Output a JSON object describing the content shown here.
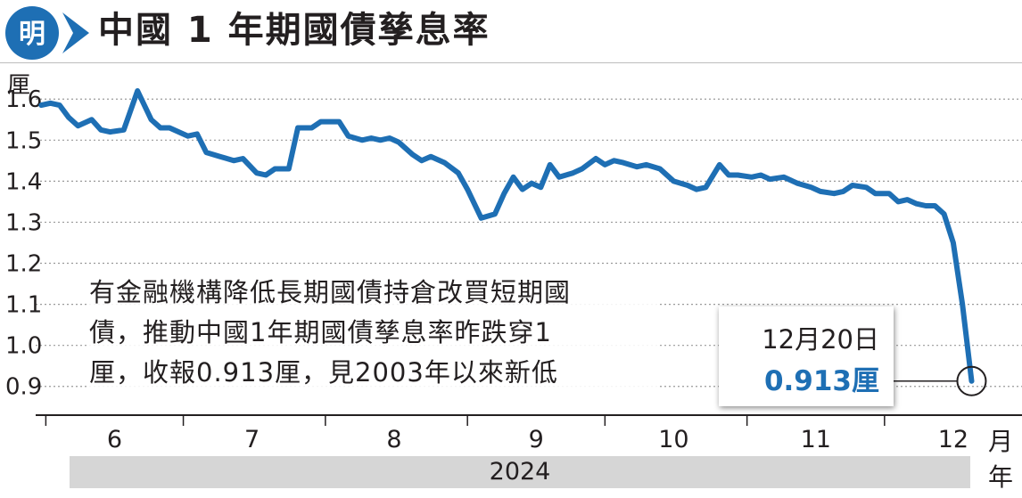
{
  "header": {
    "logo_text": "明",
    "title": "中國 1 年期國債孳息率"
  },
  "note": {
    "lines": [
      "有金融機構降低長期國債持倉改買短期國",
      "債，推動中國1年期國債孳息率昨跌穿1",
      "厘，收報0.913厘，見2003年以來新低"
    ]
  },
  "callout": {
    "date": "12月20日",
    "value": "0.913厘"
  },
  "colors": {
    "line": "#1e6fb4",
    "grid": "#9a9a9a",
    "axis": "#231f20",
    "year_bar": "#d6d6d6",
    "logo_blue": "#1e6fb4"
  },
  "chart_data": {
    "type": "line",
    "title": "中國 1 年期國債孳息率",
    "ylabel": "厘",
    "xlabel": "月",
    "year_label": "2024",
    "year_unit": "年",
    "ylim": [
      0.83,
      1.62
    ],
    "y_ticks": [
      {
        "value": 1.6,
        "label": "1.6"
      },
      {
        "value": 1.5,
        "label": "1.5"
      },
      {
        "value": 1.4,
        "label": "1.4"
      },
      {
        "value": 1.3,
        "label": "1.3"
      },
      {
        "value": 1.2,
        "label": "1.2"
      },
      {
        "value": 1.1,
        "label": "1.1"
      },
      {
        "value": 1.0,
        "label": "1.0"
      },
      {
        "value": 0.9,
        "label": "0.9"
      }
    ],
    "grid": true,
    "xlim": [
      "2024-05-22",
      "2024-12-31"
    ],
    "x_ticks": [
      "2024-06-01",
      "2024-07-01",
      "2024-08-01",
      "2024-09-01",
      "2024-10-01",
      "2024-11-01",
      "2024-12-01"
    ],
    "x_labels": [
      {
        "date": "2024-06-16",
        "label": "6"
      },
      {
        "date": "2024-07-16",
        "label": "7"
      },
      {
        "date": "2024-08-16",
        "label": "8"
      },
      {
        "date": "2024-09-16",
        "label": "9"
      },
      {
        "date": "2024-10-16",
        "label": "10"
      },
      {
        "date": "2024-11-16",
        "label": "11"
      },
      {
        "date": "2024-12-16",
        "label": "12"
      }
    ],
    "highlight": {
      "date": "2024-12-20",
      "value": 0.913
    },
    "series": [
      {
        "x": [
          "2024-05-31",
          "2024-06-02",
          "2024-06-04",
          "2024-06-06",
          "2024-06-08",
          "2024-06-11",
          "2024-06-13",
          "2024-06-15",
          "2024-06-18",
          "2024-06-21",
          "2024-06-24",
          "2024-06-26",
          "2024-06-28",
          "2024-06-30",
          "2024-07-02",
          "2024-07-04",
          "2024-07-06",
          "2024-07-09",
          "2024-07-12",
          "2024-07-14",
          "2024-07-17",
          "2024-07-19",
          "2024-07-21",
          "2024-07-24",
          "2024-07-26",
          "2024-07-29",
          "2024-07-31",
          "2024-08-02",
          "2024-08-04",
          "2024-08-06",
          "2024-08-09",
          "2024-08-11",
          "2024-08-13",
          "2024-08-15",
          "2024-08-17",
          "2024-08-20",
          "2024-08-22",
          "2024-08-24",
          "2024-08-27",
          "2024-08-30",
          "2024-09-01",
          "2024-09-04",
          "2024-09-07",
          "2024-09-09",
          "2024-09-11",
          "2024-09-13",
          "2024-09-15",
          "2024-09-17",
          "2024-09-19",
          "2024-09-21",
          "2024-09-24",
          "2024-09-26",
          "2024-09-29",
          "2024-10-01",
          "2024-10-03",
          "2024-10-05",
          "2024-10-08",
          "2024-10-10",
          "2024-10-13",
          "2024-10-16",
          "2024-10-19",
          "2024-10-21",
          "2024-10-23",
          "2024-10-26",
          "2024-10-28",
          "2024-10-30",
          "2024-11-02",
          "2024-11-04",
          "2024-11-06",
          "2024-11-09",
          "2024-11-12",
          "2024-11-15",
          "2024-11-17",
          "2024-11-20",
          "2024-11-22",
          "2024-11-24",
          "2024-11-27",
          "2024-11-29",
          "2024-12-02",
          "2024-12-04",
          "2024-12-06",
          "2024-12-08",
          "2024-12-10",
          "2024-12-12",
          "2024-12-14",
          "2024-12-16",
          "2024-12-18",
          "2024-12-20"
        ],
        "y": [
          1.585,
          1.59,
          1.585,
          1.555,
          1.535,
          1.55,
          1.525,
          1.52,
          1.525,
          1.62,
          1.55,
          1.53,
          1.53,
          1.52,
          1.51,
          1.515,
          1.47,
          1.46,
          1.45,
          1.455,
          1.42,
          1.415,
          1.43,
          1.43,
          1.53,
          1.53,
          1.545,
          1.545,
          1.545,
          1.51,
          1.5,
          1.505,
          1.5,
          1.505,
          1.495,
          1.465,
          1.45,
          1.46,
          1.445,
          1.42,
          1.38,
          1.31,
          1.32,
          1.37,
          1.41,
          1.38,
          1.395,
          1.385,
          1.44,
          1.41,
          1.42,
          1.43,
          1.455,
          1.44,
          1.45,
          1.445,
          1.435,
          1.44,
          1.43,
          1.4,
          1.39,
          1.38,
          1.385,
          1.44,
          1.415,
          1.415,
          1.41,
          1.415,
          1.405,
          1.41,
          1.395,
          1.385,
          1.375,
          1.37,
          1.375,
          1.39,
          1.385,
          1.37,
          1.37,
          1.35,
          1.355,
          1.345,
          1.34,
          1.34,
          1.32,
          1.25,
          1.1,
          0.913
        ]
      }
    ]
  }
}
